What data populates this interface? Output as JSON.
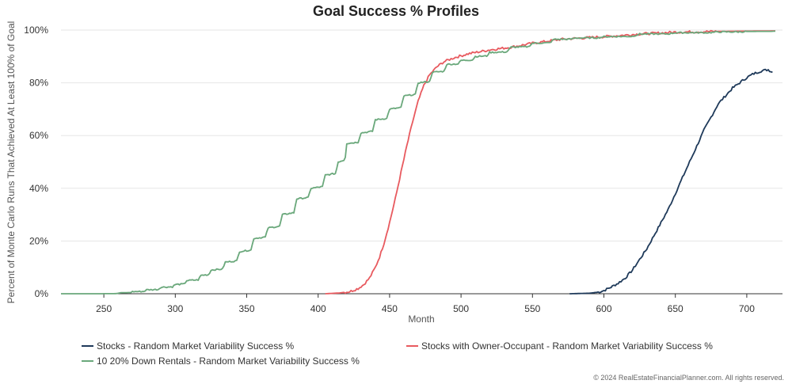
{
  "chart_data": {
    "type": "line",
    "title": "Goal Success % Profiles",
    "xlabel": "Month",
    "ylabel": "Percent of Monte Carlo Runs That Achieved At Least 100% of Goal",
    "xlim": [
      220,
      725
    ],
    "ylim": [
      0,
      100
    ],
    "x_ticks": [
      250,
      300,
      350,
      400,
      450,
      500,
      550,
      600,
      650,
      700
    ],
    "y_ticks": [
      0,
      20,
      40,
      60,
      80,
      100
    ],
    "y_tick_labels": [
      "0%",
      "20%",
      "40%",
      "60%",
      "80%",
      "100%"
    ],
    "grid": true,
    "legend_position": "bottom",
    "series": [
      {
        "name": "Stocks - Random Market Variability Success %",
        "color": "#1f3a5a",
        "points": [
          [
            576,
            0
          ],
          [
            590,
            0.2
          ],
          [
            596,
            0.6
          ],
          [
            600,
            1.2
          ],
          [
            605,
            2.5
          ],
          [
            610,
            4
          ],
          [
            615,
            6
          ],
          [
            620,
            9
          ],
          [
            625,
            13
          ],
          [
            630,
            17
          ],
          [
            635,
            22
          ],
          [
            640,
            27
          ],
          [
            645,
            32
          ],
          [
            650,
            38
          ],
          [
            655,
            44
          ],
          [
            660,
            50
          ],
          [
            665,
            56
          ],
          [
            670,
            62
          ],
          [
            675,
            67
          ],
          [
            680,
            72
          ],
          [
            685,
            75
          ],
          [
            690,
            78
          ],
          [
            695,
            80
          ],
          [
            700,
            82
          ],
          [
            705,
            83.5
          ],
          [
            710,
            84.5
          ],
          [
            715,
            85
          ],
          [
            718,
            84
          ]
        ]
      },
      {
        "name": "Stocks with Owner-Occupant - Random Market Variability Success %",
        "color": "#e85a5f",
        "points": [
          [
            405,
            0
          ],
          [
            415,
            0.3
          ],
          [
            422,
            0.8
          ],
          [
            428,
            2
          ],
          [
            432,
            3.5
          ],
          [
            436,
            6
          ],
          [
            440,
            10
          ],
          [
            443,
            14
          ],
          [
            446,
            19
          ],
          [
            450,
            27
          ],
          [
            454,
            36
          ],
          [
            458,
            46
          ],
          [
            462,
            56
          ],
          [
            466,
            65
          ],
          [
            470,
            73
          ],
          [
            474,
            79
          ],
          [
            478,
            83
          ],
          [
            483,
            86
          ],
          [
            488,
            88
          ],
          [
            495,
            89.5
          ],
          [
            505,
            91
          ],
          [
            520,
            92.5
          ],
          [
            535,
            93.5
          ],
          [
            550,
            95
          ],
          [
            570,
            96.5
          ],
          [
            600,
            97.5
          ],
          [
            625,
            98.5
          ],
          [
            650,
            99.2
          ],
          [
            680,
            99.5
          ],
          [
            700,
            99.6
          ],
          [
            720,
            99.7
          ]
        ]
      },
      {
        "name": "10 20% Down Rentals - Random Market Variability Success %",
        "color": "#6aa87b",
        "points": [
          [
            220,
            0
          ],
          [
            245,
            0
          ],
          [
            262,
            0.4
          ],
          [
            270,
            0.8
          ],
          [
            280,
            1.5
          ],
          [
            290,
            2.5
          ],
          [
            300,
            3.5
          ],
          [
            308,
            5
          ],
          [
            318,
            7
          ],
          [
            325,
            9
          ],
          [
            335,
            12
          ],
          [
            345,
            16
          ],
          [
            355,
            21
          ],
          [
            365,
            25
          ],
          [
            375,
            30
          ],
          [
            385,
            36
          ],
          [
            395,
            40
          ],
          [
            405,
            45
          ],
          [
            414,
            50
          ],
          [
            420,
            57
          ],
          [
            430,
            61
          ],
          [
            440,
            66
          ],
          [
            450,
            70
          ],
          [
            460,
            75
          ],
          [
            470,
            80
          ],
          [
            480,
            84
          ],
          [
            490,
            87
          ],
          [
            500,
            88.5
          ],
          [
            510,
            90
          ],
          [
            520,
            91.5
          ],
          [
            535,
            93.5
          ],
          [
            550,
            95
          ],
          [
            565,
            96.5
          ],
          [
            580,
            97
          ],
          [
            600,
            97.5
          ],
          [
            625,
            98.5
          ],
          [
            650,
            99
          ],
          [
            680,
            99.3
          ],
          [
            700,
            99.5
          ],
          [
            720,
            99.6
          ]
        ]
      }
    ]
  },
  "credit": "© 2024 RealEstateFinancialPlanner.com. All rights reserved."
}
